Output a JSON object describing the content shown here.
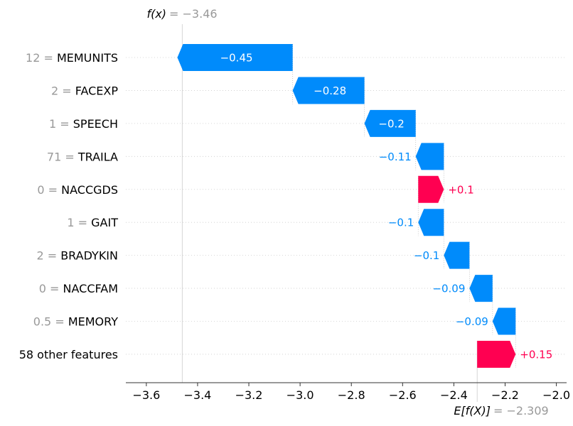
{
  "chart_data": {
    "type": "waterfall",
    "colors": {
      "negative": "#008bfb",
      "positive": "#ff0051"
    },
    "fx": {
      "label": "f(x)",
      "value_text": "= −3.46",
      "value": -3.46
    },
    "base": {
      "label": "E[f(X)]",
      "value_text": "= −2.309",
      "value": -2.309
    },
    "xlim": [
      -3.68,
      -1.96
    ],
    "xticks": [
      -3.6,
      -3.4,
      -3.2,
      -3.0,
      -2.8,
      -2.6,
      -2.4,
      -2.2,
      -2.0
    ],
    "xtick_labels": [
      "−3.6",
      "−3.4",
      "−3.2",
      "−3.0",
      "−2.8",
      "−2.6",
      "−2.4",
      "−2.2",
      "−2.0"
    ],
    "features": [
      {
        "value_text": "12 = ",
        "name": "MEMUNITS",
        "shap": -0.45,
        "label": "−0.45"
      },
      {
        "value_text": "2 = ",
        "name": "FACEXP",
        "shap": -0.28,
        "label": "−0.28"
      },
      {
        "value_text": "1 = ",
        "name": "SPEECH",
        "shap": -0.2,
        "label": "−0.2"
      },
      {
        "value_text": "71 = ",
        "name": "TRAILA",
        "shap": -0.11,
        "label": "−0.11"
      },
      {
        "value_text": "0 = ",
        "name": "NACCGDS",
        "shap": 0.1,
        "label": "+0.1"
      },
      {
        "value_text": "1 = ",
        "name": "GAIT",
        "shap": -0.1,
        "label": "−0.1"
      },
      {
        "value_text": "2 = ",
        "name": "BRADYKIN",
        "shap": -0.1,
        "label": "−0.1"
      },
      {
        "value_text": "0 = ",
        "name": "NACCFAM",
        "shap": -0.09,
        "label": "−0.09"
      },
      {
        "value_text": "0.5 = ",
        "name": "MEMORY",
        "shap": -0.09,
        "label": "−0.09"
      },
      {
        "value_text": "",
        "name": "58 other features",
        "shap": 0.15,
        "label": "+0.15"
      }
    ]
  }
}
